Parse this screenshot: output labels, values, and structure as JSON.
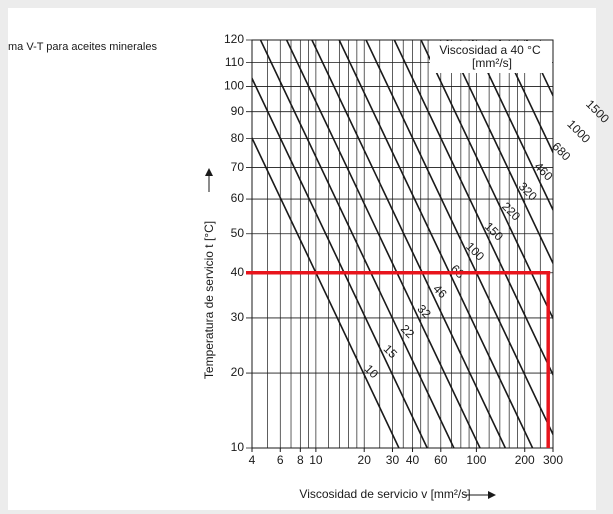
{
  "caption": "ma V-T para aceites minerales",
  "chart_data": {
    "type": "line",
    "legend_title": "Viscosidad a 40 °C",
    "legend_unit": "[mm²/s]",
    "xlabel": "Viscosidad de servicio v [mm²/s]",
    "ylabel": "Temperatura de servicio t [°C]",
    "xscale": "log",
    "xlim": [
      4,
      300
    ],
    "xticks": [
      4,
      6,
      8,
      10,
      20,
      30,
      40,
      60,
      100,
      200,
      300
    ],
    "xgrid": [
      4,
      5,
      6,
      7,
      8,
      9,
      10,
      12,
      14,
      16,
      18,
      20,
      25,
      30,
      35,
      40,
      45,
      50,
      60,
      70,
      80,
      90,
      100,
      120,
      140,
      160,
      180,
      200,
      250,
      300
    ],
    "ylim": [
      10,
      120
    ],
    "yticks": [
      10,
      20,
      30,
      40,
      50,
      60,
      70,
      80,
      90,
      100,
      110,
      120
    ],
    "reference_temperature": 40,
    "grades": [
      10,
      15,
      22,
      32,
      46,
      68,
      100,
      150,
      220,
      320,
      460,
      680,
      1000,
      1500
    ],
    "color": "#1a1a1a",
    "highlight": {
      "x": 280,
      "y": 40,
      "color": "#e8141c"
    }
  }
}
